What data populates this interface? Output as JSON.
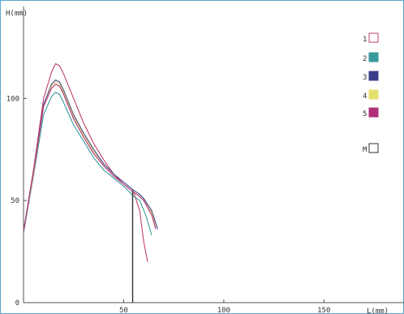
{
  "chart_data": {
    "type": "line",
    "ylabel": "H(mm)",
    "xlabel": "L(mm)",
    "xlim": [
      0,
      190
    ],
    "ylim": [
      0,
      145
    ],
    "xticks": [
      "50",
      "100",
      "150"
    ],
    "yticks": [
      "0",
      "50",
      "100"
    ],
    "legend_position": "right",
    "series": [
      {
        "name": "1",
        "color": "#c0406a",
        "x": [
          0,
          5,
          10,
          14,
          16,
          18,
          20,
          25,
          30,
          35,
          40,
          45,
          50,
          55,
          58,
          60,
          62
        ],
        "y": [
          35,
          65,
          100,
          113,
          117,
          116,
          112,
          100,
          88,
          78,
          70,
          63,
          58,
          54,
          45,
          30,
          20
        ]
      },
      {
        "name": "2",
        "color": "#3a9a9e",
        "x": [
          0,
          5,
          10,
          14,
          16,
          18,
          20,
          25,
          30,
          35,
          40,
          45,
          50,
          55,
          58,
          61,
          64
        ],
        "y": [
          34,
          62,
          92,
          101,
          103,
          102,
          98,
          87,
          79,
          71,
          65,
          61,
          57,
          52,
          50,
          43,
          33
        ]
      },
      {
        "name": "3",
        "color": "#3c3c8a",
        "x": [
          0,
          5,
          10,
          14,
          16,
          18,
          20,
          25,
          30,
          35,
          40,
          45,
          50,
          55,
          58,
          60,
          64,
          67
        ],
        "y": [
          35,
          64,
          97,
          107,
          109,
          108,
          104,
          92,
          83,
          75,
          68,
          63,
          59,
          55,
          53,
          51,
          45,
          36
        ]
      },
      {
        "name": "4",
        "color": "#e6e070",
        "x": [
          0,
          5,
          10,
          14,
          16,
          18,
          20,
          25,
          30,
          35,
          40,
          45,
          50,
          55,
          58,
          60,
          64,
          66
        ],
        "y": [
          35,
          63,
          96,
          106,
          108,
          107,
          103,
          91,
          82,
          74,
          67,
          62,
          58,
          54,
          52,
          50,
          44,
          37
        ]
      },
      {
        "name": "5",
        "color": "#b0307a",
        "x": [
          0,
          5,
          10,
          14,
          16,
          18,
          20,
          25,
          30,
          35,
          40,
          45,
          50,
          55,
          58,
          60,
          64,
          66
        ],
        "y": [
          35,
          64,
          96,
          105,
          107,
          106,
          102,
          90,
          81,
          73,
          67,
          62,
          58,
          54,
          52,
          50,
          43,
          36
        ]
      },
      {
        "name": "M",
        "color": "#333333",
        "x": [
          54.5,
          54.5
        ],
        "y": [
          55,
          0
        ]
      }
    ]
  }
}
